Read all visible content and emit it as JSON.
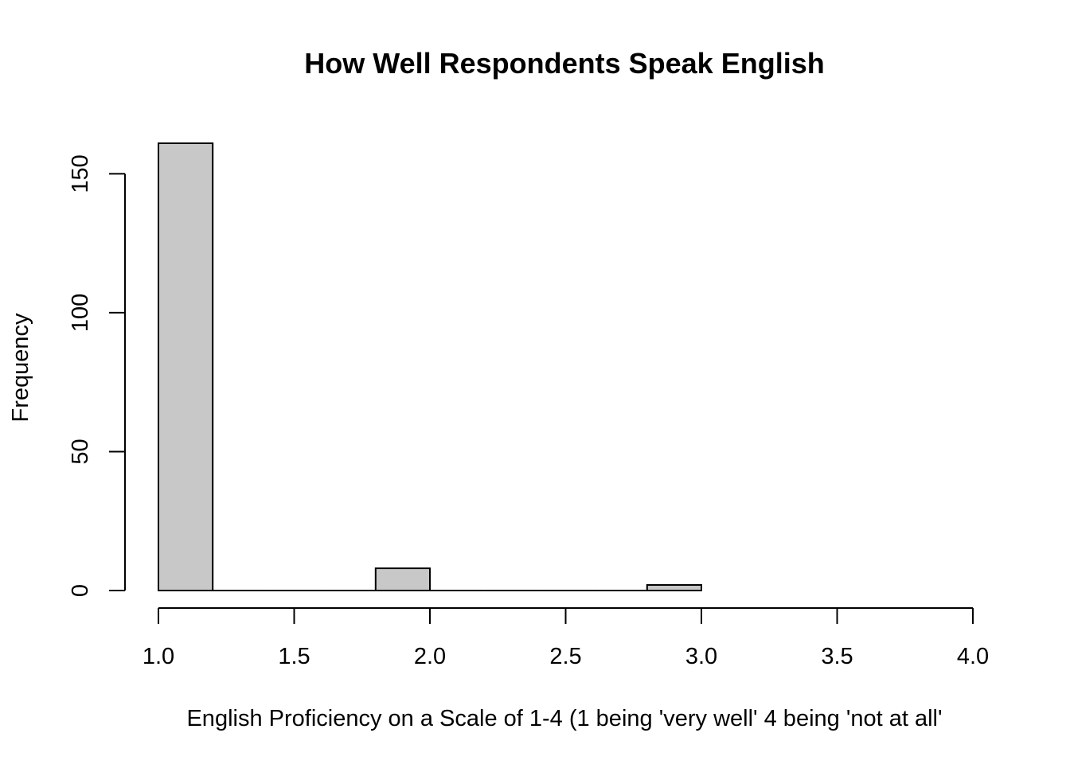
{
  "chart_data": {
    "type": "bar",
    "title": "How Well Respondents Speak English",
    "xlabel": "English Proficiency on a Scale of 1-4 (1 being 'very well' 4 being 'not at all'",
    "ylabel": "Frequency",
    "bins": [
      {
        "start": 1.0,
        "end": 1.2,
        "count": 161
      },
      {
        "start": 1.2,
        "end": 1.4,
        "count": 0
      },
      {
        "start": 1.4,
        "end": 1.6,
        "count": 0
      },
      {
        "start": 1.6,
        "end": 1.8,
        "count": 0
      },
      {
        "start": 1.8,
        "end": 2.0,
        "count": 8
      },
      {
        "start": 2.0,
        "end": 2.2,
        "count": 0
      },
      {
        "start": 2.2,
        "end": 2.4,
        "count": 0
      },
      {
        "start": 2.4,
        "end": 2.6,
        "count": 0
      },
      {
        "start": 2.6,
        "end": 2.8,
        "count": 0
      },
      {
        "start": 2.8,
        "end": 3.0,
        "count": 2
      }
    ],
    "xlim": [
      1.0,
      4.0
    ],
    "ylim": [
      0,
      161
    ],
    "x_ticks": [
      "1.0",
      "1.5",
      "2.0",
      "2.5",
      "3.0",
      "3.5",
      "4.0"
    ],
    "y_ticks": [
      "0",
      "50",
      "100",
      "150"
    ],
    "grid": false,
    "bar_fill": "#c8c8c8",
    "bar_stroke": "#000000"
  }
}
